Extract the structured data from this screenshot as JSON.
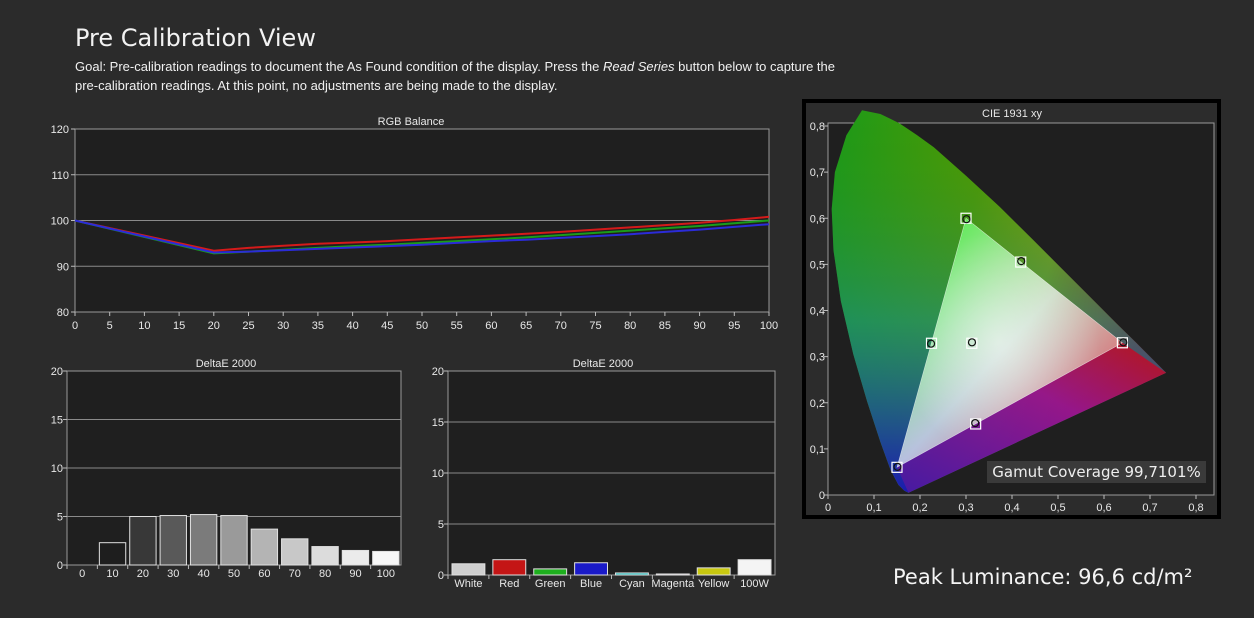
{
  "page": {
    "title": "Pre Calibration View",
    "goal_prefix": "Goal: Pre-calibration readings to document the As Found condition of the display. Press the ",
    "goal_emph": "Read Series",
    "goal_suffix": " button below to capture the pre-calibration readings. At this point, no adjustments are being made to the display.",
    "peak_luminance": "Peak Luminance: 96,6 cd/m²",
    "gamut_coverage": "Gamut Coverage 99,7101%"
  },
  "chart_data": [
    {
      "type": "line",
      "title": "RGB Balance",
      "x": [
        0,
        20,
        25,
        30,
        35,
        40,
        45,
        50,
        55,
        60,
        65,
        70,
        75,
        80,
        85,
        90,
        95,
        100
      ],
      "x_ticks": [
        "0",
        "5",
        "10",
        "15",
        "20",
        "25",
        "30",
        "35",
        "40",
        "45",
        "50",
        "55",
        "60",
        "65",
        "70",
        "75",
        "80",
        "85",
        "90",
        "95",
        "100"
      ],
      "x_tick_values": [
        0,
        5,
        10,
        15,
        20,
        25,
        30,
        35,
        40,
        45,
        50,
        55,
        60,
        65,
        70,
        75,
        80,
        85,
        90,
        95,
        100
      ],
      "ylim": [
        80,
        120
      ],
      "y_ticks": [
        80,
        90,
        100,
        110,
        120
      ],
      "series": [
        {
          "color": "#d41a1a",
          "values": [
            100,
            93.4,
            94.0,
            94.5,
            94.9,
            95.2,
            95.5,
            95.9,
            96.3,
            96.7,
            97.1,
            97.5,
            98.0,
            98.5,
            99.0,
            99.5,
            100.1,
            100.8
          ]
        },
        {
          "color": "#1a9c1a",
          "values": [
            100,
            92.8,
            93.2,
            93.6,
            94.0,
            94.4,
            94.7,
            95.1,
            95.5,
            95.9,
            96.3,
            96.8,
            97.3,
            97.8,
            98.3,
            98.8,
            99.4,
            100.0
          ]
        },
        {
          "color": "#2b2bd8",
          "values": [
            100,
            93.0,
            93.2,
            93.5,
            93.8,
            94.1,
            94.4,
            94.7,
            95.1,
            95.5,
            95.8,
            96.2,
            96.6,
            97.0,
            97.5,
            98.0,
            98.6,
            99.2
          ]
        }
      ]
    },
    {
      "type": "bar",
      "title": "DeltaE 2000",
      "categories": [
        "0",
        "10",
        "20",
        "30",
        "40",
        "50",
        "60",
        "70",
        "80",
        "90",
        "100"
      ],
      "values": [
        0,
        2.3,
        5.0,
        5.1,
        5.2,
        5.1,
        3.7,
        2.7,
        1.9,
        1.5,
        1.4
      ],
      "colors": [
        "#000000",
        "#1e1e1e",
        "#383838",
        "#595959",
        "#7b7b7b",
        "#9a9a9a",
        "#b4b4b4",
        "#c8c8c8",
        "#dcdcdc",
        "#ebebeb",
        "#f7f7f7"
      ],
      "ylim": [
        0,
        20
      ],
      "y_ticks": [
        0,
        5,
        10,
        15,
        20
      ]
    },
    {
      "type": "bar",
      "title": "DeltaE 2000",
      "categories": [
        "White",
        "Red",
        "Green",
        "Blue",
        "Cyan",
        "Magenta",
        "Yellow",
        "100W"
      ],
      "values": [
        1.1,
        1.5,
        0.6,
        1.2,
        0.2,
        0.1,
        0.7,
        1.5
      ],
      "colors": [
        "#cfcfcf",
        "#c41515",
        "#1eb01e",
        "#1a1ac8",
        "#12b6b6",
        "#b012b0",
        "#c8c810",
        "#f4f4f4"
      ],
      "ylim": [
        0,
        20
      ],
      "y_ticks": [
        0,
        5,
        10,
        15,
        20
      ]
    },
    {
      "type": "scatter",
      "title": "CIE 1931 xy",
      "xlim": [
        0,
        0.8
      ],
      "ylim": [
        0,
        0.8
      ],
      "x_ticks": [
        "0",
        "0,1",
        "0,2",
        "0,3",
        "0,4",
        "0,5",
        "0,6",
        "0,7",
        "0,8"
      ],
      "y_ticks": [
        "0",
        "0,1",
        "0,2",
        "0,3",
        "0,4",
        "0,5",
        "0,6",
        "0,7",
        "0,8"
      ],
      "gamut_triangle": [
        [
          0.64,
          0.33
        ],
        [
          0.3,
          0.6
        ],
        [
          0.15,
          0.06
        ]
      ],
      "targets": [
        {
          "name": "Red",
          "x": 0.64,
          "y": 0.33
        },
        {
          "name": "Green",
          "x": 0.3,
          "y": 0.6
        },
        {
          "name": "Blue",
          "x": 0.15,
          "y": 0.06
        },
        {
          "name": "Cyan",
          "x": 0.225,
          "y": 0.329
        },
        {
          "name": "Magenta",
          "x": 0.321,
          "y": 0.154
        },
        {
          "name": "Yellow",
          "x": 0.419,
          "y": 0.505
        },
        {
          "name": "White",
          "x": 0.3127,
          "y": 0.329
        }
      ],
      "measured": [
        {
          "name": "Red",
          "x": 0.642,
          "y": 0.331
        },
        {
          "name": "Green",
          "x": 0.301,
          "y": 0.598
        },
        {
          "name": "Blue",
          "x": 0.151,
          "y": 0.061
        },
        {
          "name": "Cyan",
          "x": 0.224,
          "y": 0.328
        },
        {
          "name": "Magenta",
          "x": 0.32,
          "y": 0.156
        },
        {
          "name": "Yellow",
          "x": 0.42,
          "y": 0.507
        },
        {
          "name": "White",
          "x": 0.313,
          "y": 0.331
        }
      ]
    }
  ]
}
